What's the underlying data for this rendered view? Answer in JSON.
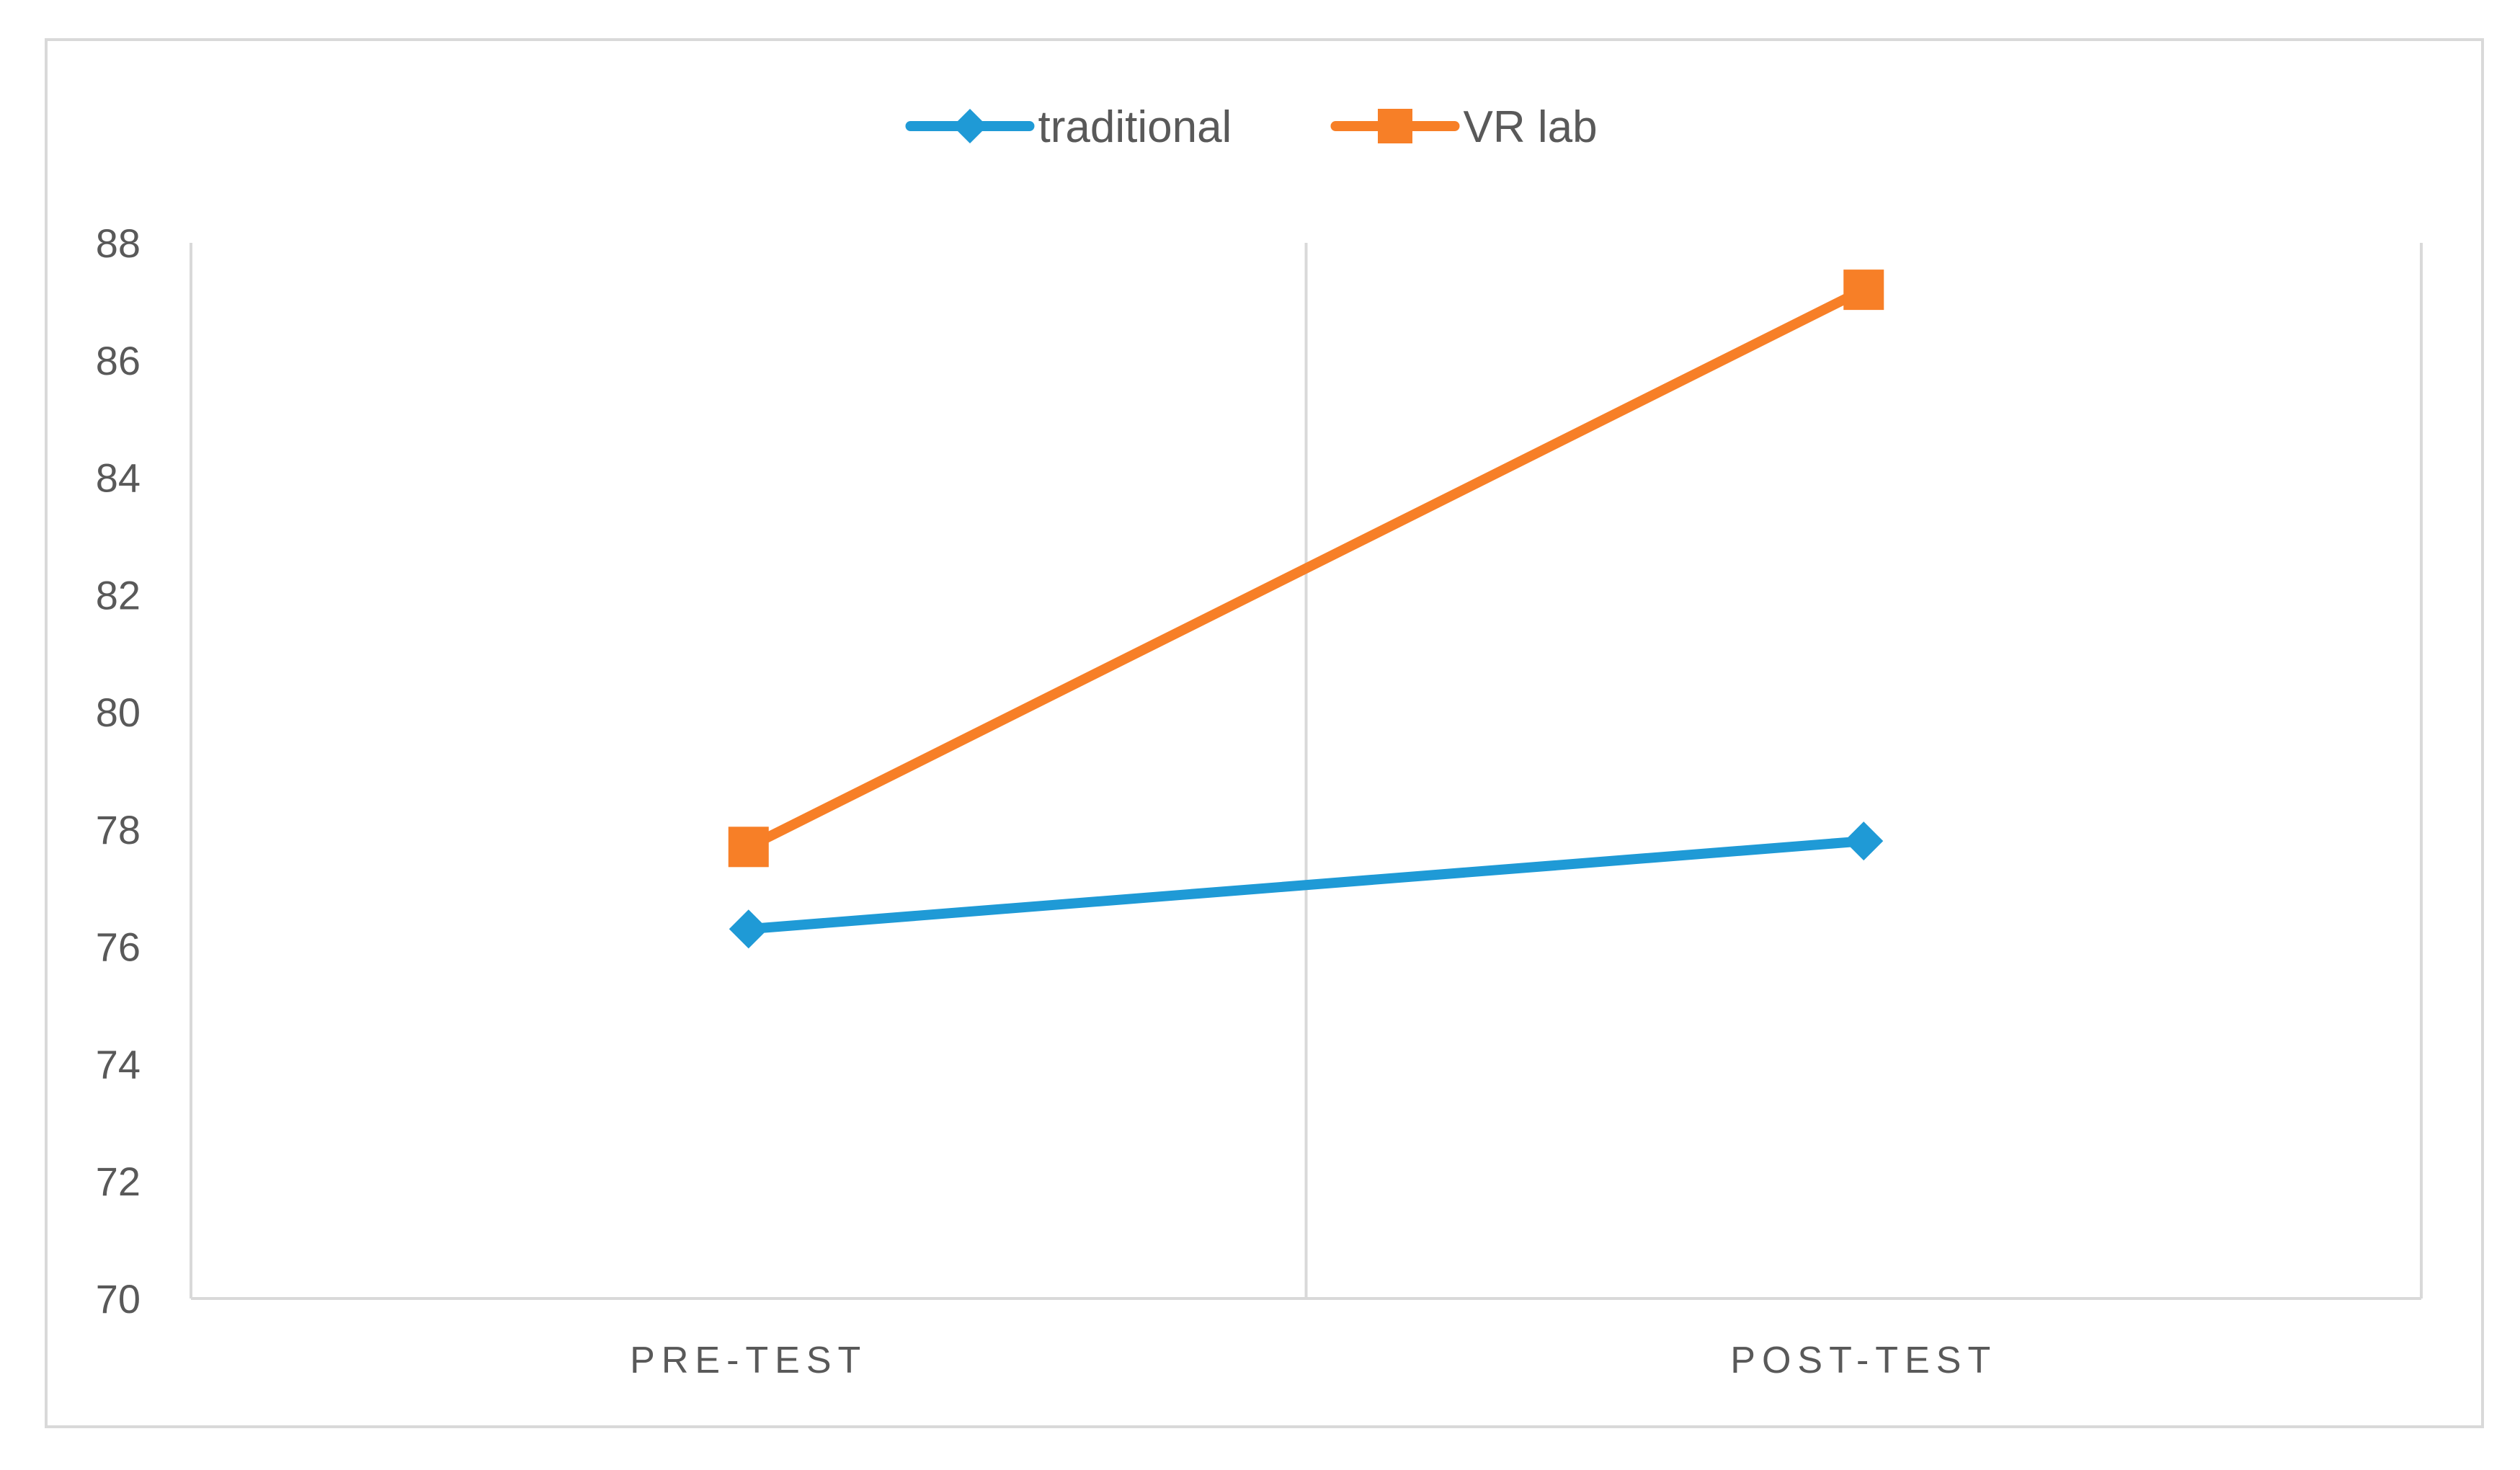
{
  "chart_data": {
    "type": "line",
    "categories": [
      "PRE-TEST",
      "POST-TEST"
    ],
    "series": [
      {
        "name": "traditional",
        "values": [
          76.3,
          77.8
        ],
        "color": "#1f9ad6",
        "marker": "diamond"
      },
      {
        "name": "VR lab",
        "values": [
          77.7,
          87.2
        ],
        "color": "#f77f27",
        "marker": "square"
      }
    ],
    "yticks": [
      70,
      72,
      74,
      76,
      78,
      80,
      82,
      84,
      86,
      88
    ],
    "ylim": [
      70,
      88
    ],
    "title": "",
    "xlabel": "",
    "ylabel": "",
    "grid": "vertical",
    "legend": "top-center",
    "colors": {
      "axis": "#d9d9d9",
      "border": "#d9d9d9",
      "text": "#595959"
    }
  }
}
